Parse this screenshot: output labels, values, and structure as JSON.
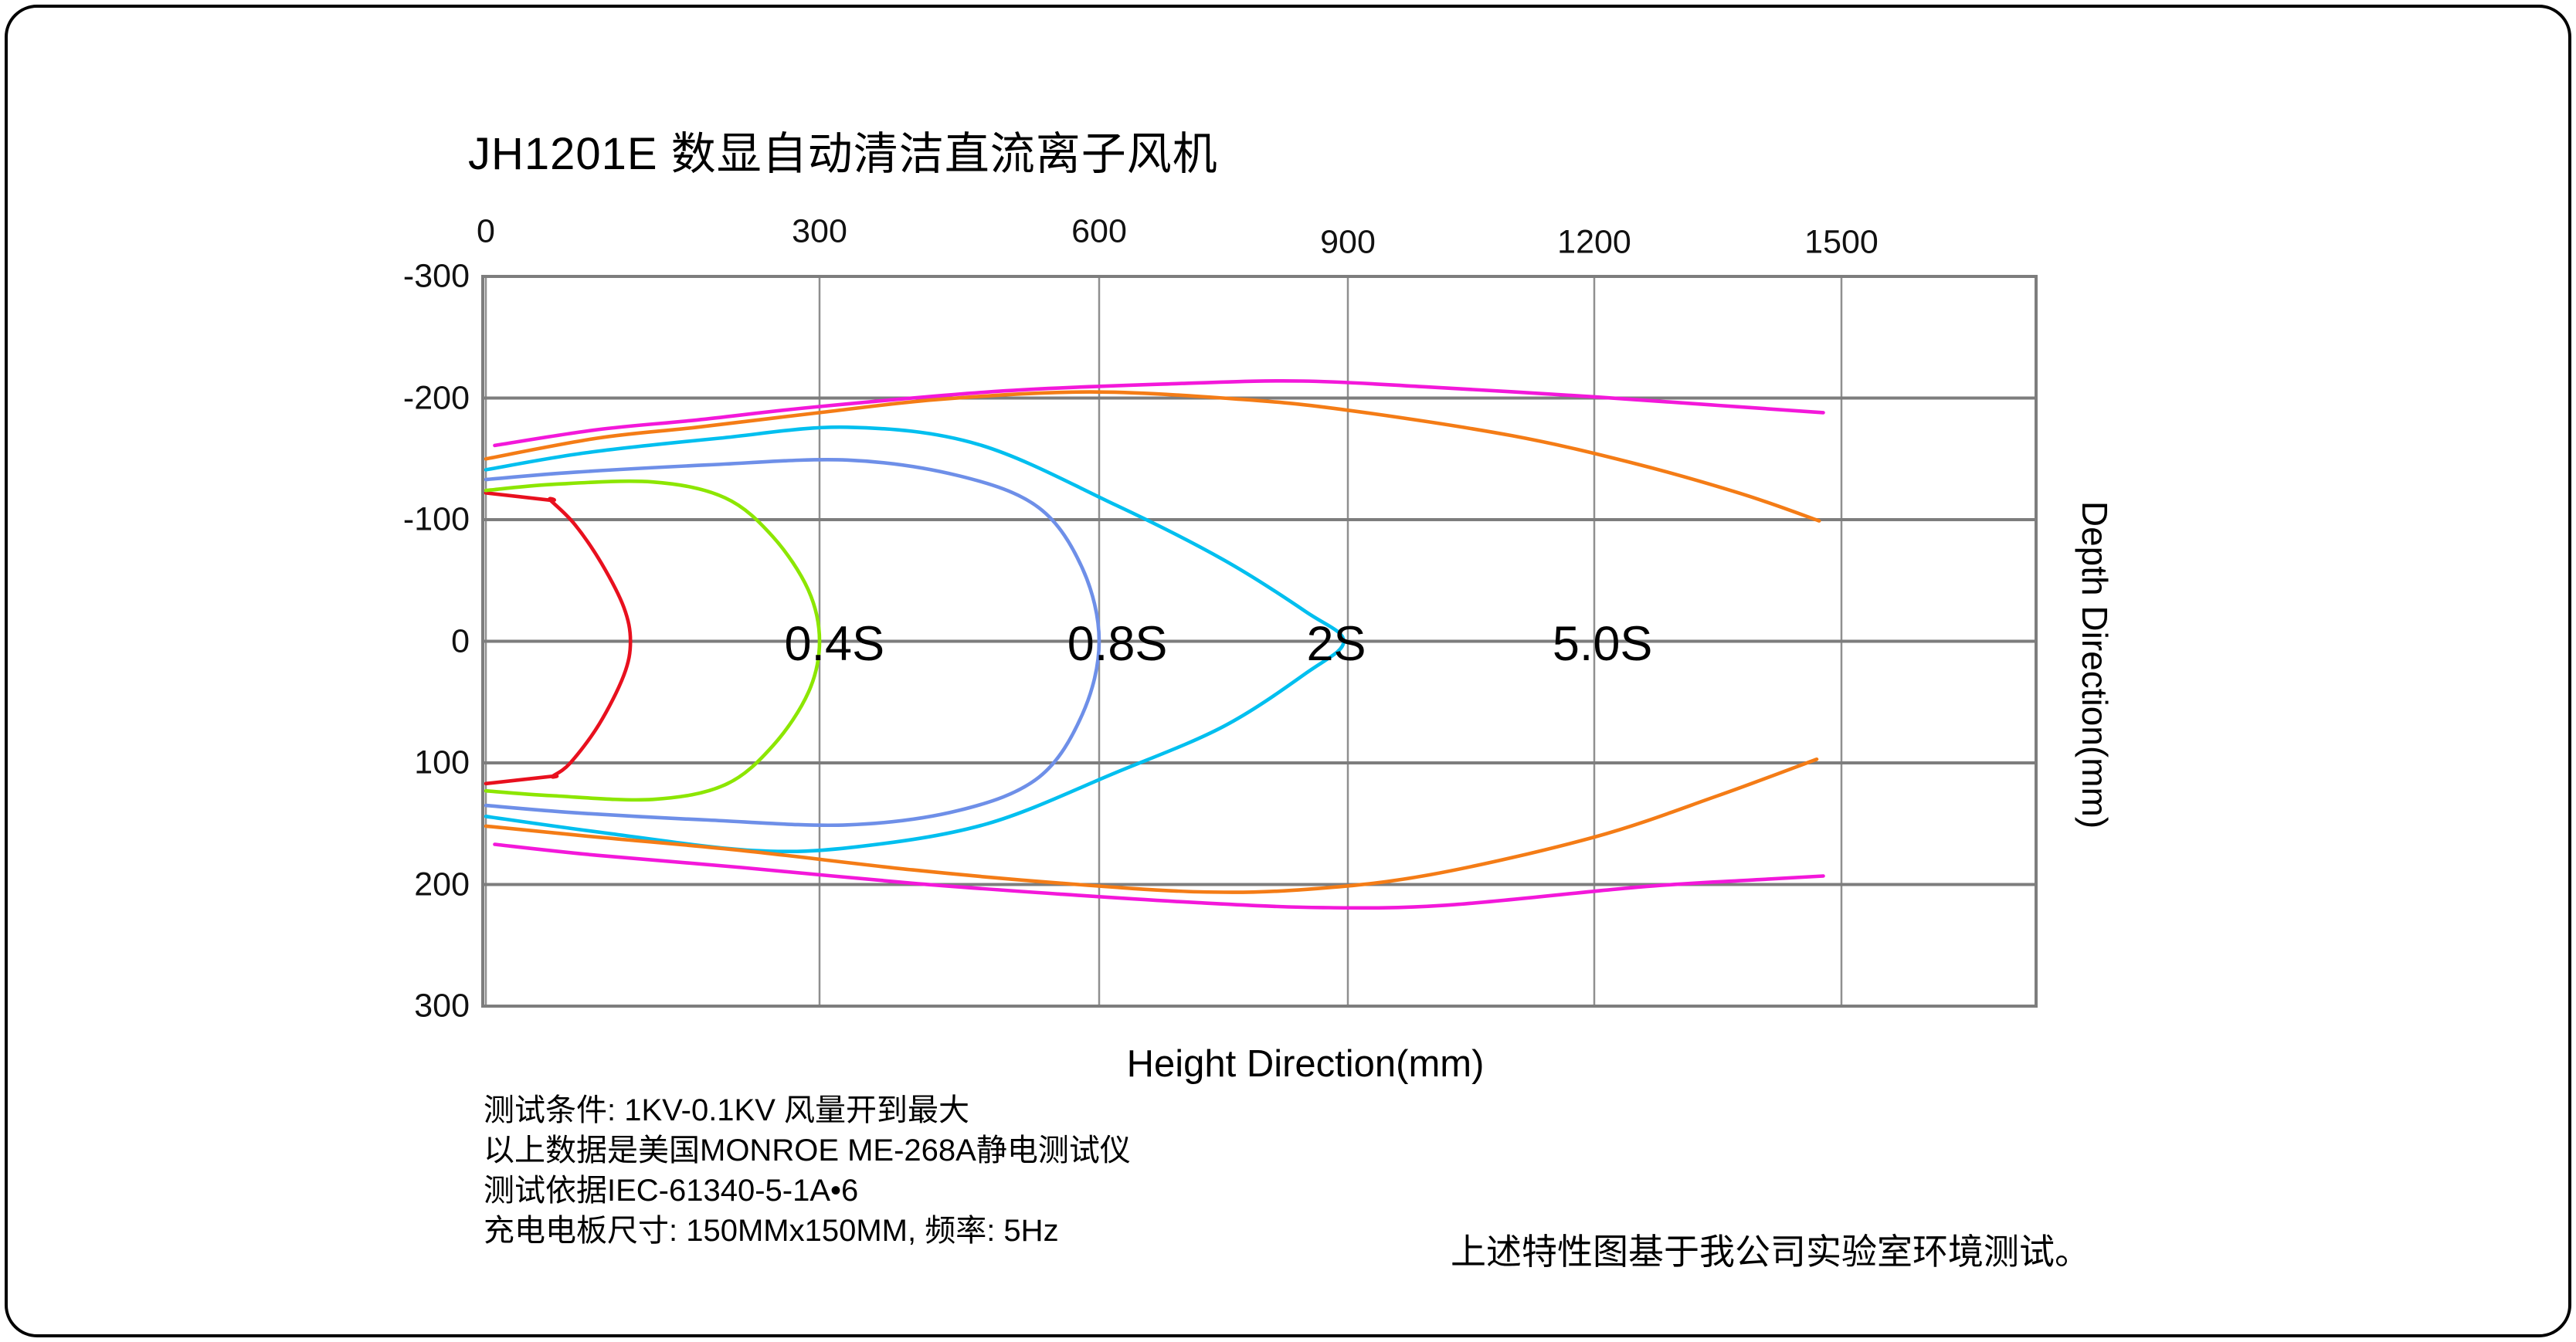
{
  "title": "JH1201E 数显自动清洁直流离子风机",
  "annotations": {
    "left_notes": [
      "测试条件: 1KV-0.1KV  风量开到最大",
      "以上数据是美国MONROE ME-268A静电测试仪",
      "测试依据IEC-61340-5-1A•6",
      "充电电板尺寸: 150MMx150MM, 频率: 5Hz"
    ],
    "right_note": "上述特性图基于我公司实验室环境测试。"
  },
  "colors": {
    "grid": "#7d7d7d",
    "grid_vertical": "#8f8f8f",
    "plot_border": "#7d7d7d",
    "frame": "#000000",
    "background": "#ffffff"
  },
  "chart_data": {
    "type": "line",
    "title": "JH1201E 数显自动清洁直流离子风机",
    "xlabel": "Height Direction(mm)",
    "ylabel": "Depth Direction(mm)",
    "xlim": [
      0,
      1735
    ],
    "ylim": [
      -300,
      300
    ],
    "grid": true,
    "legend_position": "none",
    "x_ticks": [
      {
        "label": "0",
        "value": 0,
        "dy": 0
      },
      {
        "label": "300",
        "value": 300,
        "dy": 0
      },
      {
        "label": "600",
        "value": 600,
        "dy": 0
      },
      {
        "label": "900",
        "value": 900,
        "dy": 14
      },
      {
        "label": "1200",
        "value": 1200,
        "dy": 14
      },
      {
        "label": "1500",
        "value": 1500,
        "dy": 14
      }
    ],
    "y_ticks": [
      {
        "label": "-300",
        "value": -300
      },
      {
        "label": "-200",
        "value": -200
      },
      {
        "label": "-100",
        "value": -100
      },
      {
        "label": "0",
        "value": 0
      },
      {
        "label": "100",
        "value": 100
      },
      {
        "label": "200",
        "value": 200
      },
      {
        "label": "300",
        "value": 300
      }
    ],
    "contour_labels": [
      {
        "text": "0.4S",
        "x": 316,
        "y": 2
      },
      {
        "text": "0.8S",
        "x": 622,
        "y": 2
      },
      {
        "text": "2S",
        "x": 886,
        "y": 2
      },
      {
        "text": "5.0S",
        "x": 1210,
        "y": 2
      }
    ],
    "series": [
      {
        "name": "decay-contour-inner-unlabeled",
        "color": "#e8101e",
        "paths": [
          [
            [
              0,
              -122
            ],
            [
              58,
              -116
            ],
            [
              58,
              -116
            ],
            [
              80,
              -96
            ],
            [
              104,
              -64
            ],
            [
              124,
              -28
            ],
            [
              130,
              0
            ],
            [
              124,
              28
            ],
            [
              102,
              68
            ],
            [
              76,
              100
            ],
            [
              60,
              111
            ],
            [
              60,
              111
            ],
            [
              0,
              117
            ]
          ]
        ]
      },
      {
        "name": "decay-contour-0.4S",
        "color": "#8ce600",
        "paths": [
          [
            [
              0,
              -124
            ],
            [
              60,
              -129
            ],
            [
              150,
              -131
            ],
            [
              215,
              -118
            ],
            [
              258,
              -86
            ],
            [
              290,
              -42
            ],
            [
              300,
              0
            ],
            [
              290,
              42
            ],
            [
              258,
              86
            ],
            [
              215,
              118
            ],
            [
              150,
              130
            ],
            [
              60,
              127
            ],
            [
              0,
              123
            ]
          ]
        ]
      },
      {
        "name": "decay-contour-0.8S",
        "color": "#6e8fe8",
        "paths": [
          [
            [
              0,
              -133
            ],
            [
              80,
              -139
            ],
            [
              200,
              -145
            ],
            [
              330,
              -149
            ],
            [
              450,
              -136
            ],
            [
              535,
              -110
            ],
            [
              582,
              -60
            ],
            [
              600,
              0
            ],
            [
              582,
              60
            ],
            [
              535,
              112
            ],
            [
              450,
              139
            ],
            [
              330,
              151
            ],
            [
              200,
              147
            ],
            [
              80,
              141
            ],
            [
              0,
              135
            ]
          ]
        ]
      },
      {
        "name": "decay-contour-2S",
        "color": "#00bfef",
        "paths": [
          [
            [
              0,
              -141
            ],
            [
              90,
              -155
            ],
            [
              210,
              -167
            ],
            [
              330,
              -176
            ],
            [
              470,
              -162
            ],
            [
              620,
              -112
            ],
            [
              750,
              -67
            ],
            [
              850,
              -24
            ],
            [
              895,
              0
            ],
            [
              850,
              26
            ],
            [
              750,
              70
            ],
            [
              620,
              108
            ],
            [
              480,
              150
            ],
            [
              340,
              169
            ],
            [
              240,
              172
            ],
            [
              110,
              158
            ],
            [
              0,
              144
            ]
          ]
        ]
      },
      {
        "name": "decay-contour-5.0S",
        "color": "#f47c16",
        "paths": [
          [
            [
              0,
              -150
            ],
            [
              100,
              -167
            ],
            [
              190,
              -176
            ],
            [
              300,
              -188
            ],
            [
              430,
              -199
            ],
            [
              590,
              -205
            ],
            [
              770,
              -199
            ],
            [
              900,
              -190
            ],
            [
              1100,
              -169
            ],
            [
              1250,
              -146
            ],
            [
              1380,
              -121
            ],
            [
              1473,
              -99
            ]
          ],
          [
            [
              0,
              152
            ],
            [
              100,
              161
            ],
            [
              230,
              172
            ],
            [
              400,
              188
            ],
            [
              560,
              199
            ],
            [
              720,
              206
            ],
            [
              850,
              204
            ],
            [
              1000,
              192
            ],
            [
              1200,
              161
            ],
            [
              1350,
              127
            ],
            [
              1470,
              97
            ]
          ]
        ]
      },
      {
        "name": "decay-contour-outer-unlabeled",
        "color": "#f318da",
        "paths": [
          [
            [
              8,
              -161
            ],
            [
              100,
              -174
            ],
            [
              190,
              -182
            ],
            [
              300,
              -193
            ],
            [
              500,
              -206
            ],
            [
              700,
              -212
            ],
            [
              845,
              -214
            ],
            [
              1000,
              -209
            ],
            [
              1200,
              -201
            ],
            [
              1350,
              -194
            ],
            [
              1478,
              -188
            ]
          ],
          [
            [
              8,
              167
            ],
            [
              100,
              176
            ],
            [
              230,
              186
            ],
            [
              400,
              199
            ],
            [
              560,
              208
            ],
            [
              720,
              215
            ],
            [
              870,
              219
            ],
            [
              1020,
              217
            ],
            [
              1256,
              202
            ],
            [
              1400,
              196
            ],
            [
              1478,
              193
            ]
          ]
        ]
      }
    ]
  }
}
